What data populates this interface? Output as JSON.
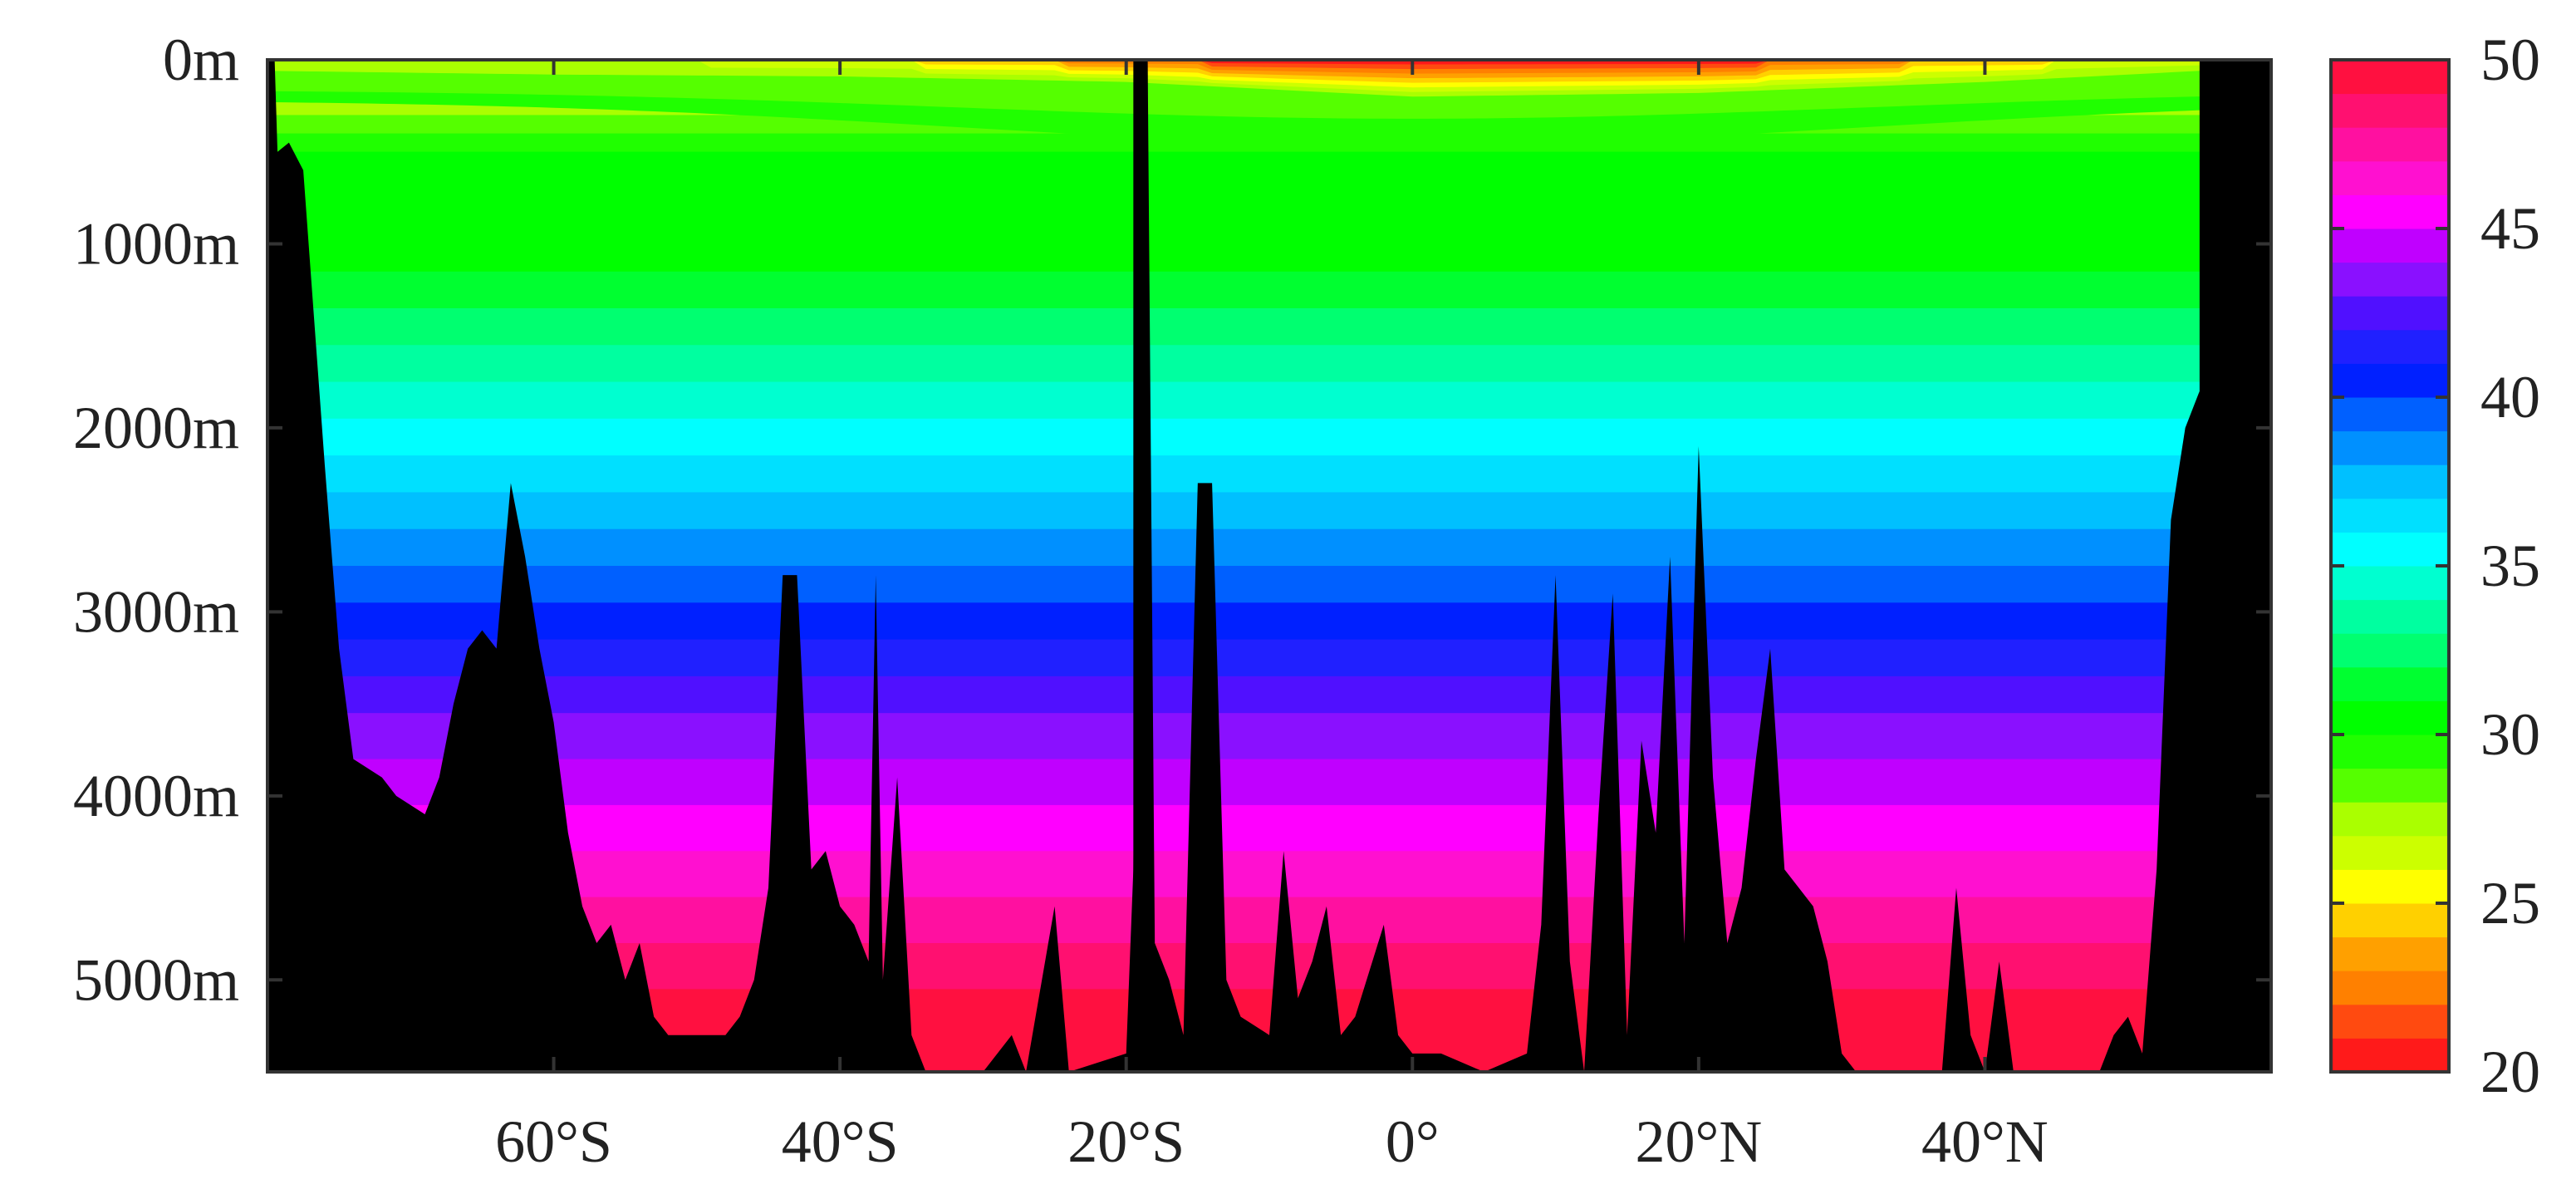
{
  "chart_data": {
    "type": "heatmap",
    "title": "",
    "xlabel": "",
    "ylabel": "",
    "x_axis": {
      "range_deg": [
        -80,
        60
      ],
      "ticks": [
        -60,
        -40,
        -20,
        0,
        20,
        40
      ],
      "tick_labels": [
        "60°S",
        "40°S",
        "20°S",
        "0°",
        "20°N",
        "40°N"
      ]
    },
    "y_axis": {
      "range_m": [
        0,
        5500
      ],
      "reversed": true,
      "ticks": [
        0,
        1000,
        2000,
        3000,
        4000,
        5000
      ],
      "tick_labels": [
        "0m",
        "1000m",
        "2000m",
        "3000m",
        "4000m",
        "5000m"
      ]
    },
    "colorbar": {
      "range": [
        20,
        50
      ],
      "ticks": [
        20,
        25,
        30,
        35,
        40,
        45,
        50
      ],
      "tick_labels": [
        "20",
        "25",
        "30",
        "35",
        "40",
        "45",
        "50"
      ],
      "levels": [
        {
          "from": 20,
          "to": 21,
          "color": "#ff1a1a"
        },
        {
          "from": 21,
          "to": 22,
          "color": "#ff4a10"
        },
        {
          "from": 22,
          "to": 23,
          "color": "#ff8000"
        },
        {
          "from": 23,
          "to": 24,
          "color": "#ffa000"
        },
        {
          "from": 24,
          "to": 25,
          "color": "#ffd000"
        },
        {
          "from": 25,
          "to": 26,
          "color": "#ffff00"
        },
        {
          "from": 26,
          "to": 27,
          "color": "#ccff00"
        },
        {
          "from": 27,
          "to": 28,
          "color": "#aaff00"
        },
        {
          "from": 28,
          "to": 29,
          "color": "#55ff00"
        },
        {
          "from": 29,
          "to": 30,
          "color": "#20ff00"
        },
        {
          "from": 30,
          "to": 31,
          "color": "#00ff00"
        },
        {
          "from": 31,
          "to": 32,
          "color": "#00ff30"
        },
        {
          "from": 32,
          "to": 33,
          "color": "#00ff70"
        },
        {
          "from": 33,
          "to": 34,
          "color": "#00ffa0"
        },
        {
          "from": 34,
          "to": 35,
          "color": "#00ffd0"
        },
        {
          "from": 35,
          "to": 36,
          "color": "#00ffff"
        },
        {
          "from": 36,
          "to": 37,
          "color": "#00e0ff"
        },
        {
          "from": 37,
          "to": 38,
          "color": "#00c0ff"
        },
        {
          "from": 38,
          "to": 39,
          "color": "#0090ff"
        },
        {
          "from": 39,
          "to": 40,
          "color": "#0060ff"
        },
        {
          "from": 40,
          "to": 41,
          "color": "#0020ff"
        },
        {
          "from": 41,
          "to": 42,
          "color": "#2020ff"
        },
        {
          "from": 42,
          "to": 43,
          "color": "#5010ff"
        },
        {
          "from": 43,
          "to": 44,
          "color": "#8a10ff"
        },
        {
          "from": 44,
          "to": 45,
          "color": "#c000ff"
        },
        {
          "from": 45,
          "to": 46,
          "color": "#ff00ff"
        },
        {
          "from": 46,
          "to": 47,
          "color": "#ff10d0"
        },
        {
          "from": 47,
          "to": 48,
          "color": "#ff10a0"
        },
        {
          "from": 48,
          "to": 49,
          "color": "#ff1070"
        },
        {
          "from": 49,
          "to": 50,
          "color": "#ff1040"
        }
      ]
    },
    "contour_depths_m": [
      {
        "value": 20,
        "depth": 0
      },
      {
        "value": 21,
        "depth": 20
      },
      {
        "value": 22,
        "depth": 40
      },
      {
        "value": 23,
        "depth": 65
      },
      {
        "value": 24,
        "depth": 90
      },
      {
        "value": 25,
        "depth": 120
      },
      {
        "value": 26,
        "depth": 160
      },
      {
        "value": 27,
        "depth": 200
      },
      {
        "value": 28,
        "depth": 300
      },
      {
        "value": 29,
        "depth": 400
      },
      {
        "value": 30,
        "depth": 500
      },
      {
        "value": 31,
        "depth": 1150
      },
      {
        "value": 32,
        "depth": 1350
      },
      {
        "value": 33,
        "depth": 1550
      },
      {
        "value": 34,
        "depth": 1750
      },
      {
        "value": 35,
        "depth": 1950
      },
      {
        "value": 36,
        "depth": 2150
      },
      {
        "value": 37,
        "depth": 2350
      },
      {
        "value": 38,
        "depth": 2550
      },
      {
        "value": 39,
        "depth": 2750
      },
      {
        "value": 40,
        "depth": 2950
      },
      {
        "value": 41,
        "depth": 3150
      },
      {
        "value": 42,
        "depth": 3350
      },
      {
        "value": 43,
        "depth": 3550
      },
      {
        "value": 44,
        "depth": 3800
      },
      {
        "value": 45,
        "depth": 4050
      },
      {
        "value": 46,
        "depth": 4300
      },
      {
        "value": 47,
        "depth": 4550
      },
      {
        "value": 48,
        "depth": 4800
      },
      {
        "value": 49,
        "depth": 5050
      },
      {
        "value": 50,
        "depth": 5500
      }
    ],
    "surface_layer": {
      "description_color_values": "Surface values 20-27 near equator, thinning poleward",
      "profile": [
        {
          "lat": -80,
          "depth_27": 60
        },
        {
          "lat": -60,
          "depth_27": 80
        },
        {
          "lat": -40,
          "depth_27": 90
        },
        {
          "lat": -20,
          "depth_27": 120
        },
        {
          "lat": 0,
          "depth_27": 200
        },
        {
          "lat": 20,
          "depth_27": 180
        },
        {
          "lat": 40,
          "depth_27": 120
        },
        {
          "lat": 60,
          "depth_27": 40
        }
      ]
    },
    "bathymetry_m": [
      [
        -80,
        0
      ],
      [
        -79.5,
        0
      ],
      [
        -79.3,
        500
      ],
      [
        -78.5,
        450
      ],
      [
        -77.5,
        600
      ],
      [
        -76,
        2200
      ],
      [
        -75,
        3200
      ],
      [
        -74,
        3800
      ],
      [
        -72,
        3900
      ],
      [
        -71,
        4000
      ],
      [
        -69,
        4100
      ],
      [
        -68,
        3900
      ],
      [
        -67,
        3500
      ],
      [
        -66,
        3200
      ],
      [
        -65,
        3100
      ],
      [
        -64,
        3200
      ],
      [
        -63,
        2300
      ],
      [
        -62,
        2700
      ],
      [
        -61,
        3200
      ],
      [
        -60,
        3600
      ],
      [
        -59,
        4200
      ],
      [
        -58,
        4600
      ],
      [
        -57,
        4800
      ],
      [
        -56,
        4700
      ],
      [
        -55,
        5000
      ],
      [
        -54,
        4800
      ],
      [
        -53,
        5200
      ],
      [
        -52,
        5300
      ],
      [
        -50,
        5300
      ],
      [
        -48,
        5300
      ],
      [
        -47,
        5200
      ],
      [
        -46,
        5000
      ],
      [
        -45,
        4500
      ],
      [
        -44,
        2800
      ],
      [
        -43,
        2800
      ],
      [
        -42,
        4400
      ],
      [
        -41,
        4300
      ],
      [
        -40,
        4600
      ],
      [
        -39,
        4700
      ],
      [
        -38,
        4900
      ],
      [
        -37.5,
        2800
      ],
      [
        -37,
        5000
      ],
      [
        -36,
        3900
      ],
      [
        -35,
        5300
      ],
      [
        -34,
        5500
      ],
      [
        -30,
        5500
      ],
      [
        -29,
        5400
      ],
      [
        -28,
        5300
      ],
      [
        -27,
        5500
      ],
      [
        -25,
        4600
      ],
      [
        -24,
        5500
      ],
      [
        -20,
        5400
      ],
      [
        -19.5,
        4400
      ],
      [
        -19,
        0
      ],
      [
        -18.5,
        0
      ],
      [
        -18,
        4800
      ],
      [
        -17,
        5000
      ],
      [
        -16,
        5300
      ],
      [
        -15,
        2300
      ],
      [
        -14,
        2300
      ],
      [
        -13,
        5000
      ],
      [
        -12,
        5200
      ],
      [
        -10,
        5300
      ],
      [
        -9,
        4300
      ],
      [
        -8,
        5100
      ],
      [
        -7,
        4900
      ],
      [
        -6,
        4600
      ],
      [
        -5,
        5300
      ],
      [
        -4,
        5200
      ],
      [
        -2,
        4700
      ],
      [
        -1,
        5300
      ],
      [
        0,
        5400
      ],
      [
        2,
        5400
      ],
      [
        5,
        5500
      ],
      [
        8,
        5400
      ],
      [
        9,
        4700
      ],
      [
        10,
        2800
      ],
      [
        11,
        4900
      ],
      [
        12,
        5500
      ],
      [
        13,
        4100
      ],
      [
        14,
        2900
      ],
      [
        15,
        5300
      ],
      [
        16,
        3700
      ],
      [
        17,
        4200
      ],
      [
        18,
        2700
      ],
      [
        19,
        4800
      ],
      [
        20,
        2100
      ],
      [
        21,
        3900
      ],
      [
        22,
        4800
      ],
      [
        23,
        4500
      ],
      [
        24,
        3800
      ],
      [
        25,
        3200
      ],
      [
        26,
        4400
      ],
      [
        27,
        4500
      ],
      [
        28,
        4600
      ],
      [
        29,
        4900
      ],
      [
        30,
        5400
      ],
      [
        31,
        5500
      ],
      [
        37,
        5500
      ],
      [
        38,
        4500
      ],
      [
        39,
        5300
      ],
      [
        40,
        5500
      ],
      [
        41,
        4900
      ],
      [
        42,
        5500
      ],
      [
        48,
        5500
      ],
      [
        49,
        5300
      ],
      [
        50,
        5200
      ],
      [
        51,
        5400
      ],
      [
        52,
        4400
      ],
      [
        53,
        2500
      ],
      [
        54,
        2000
      ],
      [
        55,
        1800
      ],
      [
        55.5,
        2800
      ],
      [
        56,
        0
      ],
      [
        60,
        0
      ]
    ],
    "land_columns_deg": [
      [
        -19.5,
        -18.5
      ],
      [
        55,
        60
      ]
    ]
  }
}
